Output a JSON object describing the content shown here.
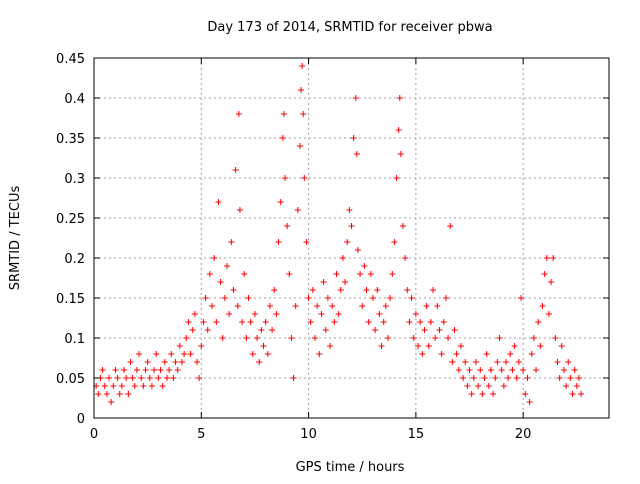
{
  "chart_data": {
    "type": "scatter",
    "title": "Day 173 of 2014, SRMTID for receiver pbwa",
    "xlabel": "GPS time / hours",
    "ylabel": "SRMTID / TECUs",
    "xlim": [
      0,
      24
    ],
    "ylim": [
      0,
      0.45
    ],
    "xticks": [
      0,
      5,
      10,
      15,
      20
    ],
    "xtick_labels": [
      "0",
      "5",
      "10",
      "15",
      "20"
    ],
    "yticks": [
      0,
      0.05,
      0.1,
      0.15,
      0.2,
      0.25,
      0.3,
      0.35,
      0.4,
      0.45
    ],
    "ytick_labels": [
      "0",
      "0.05",
      "0.1",
      "0.15",
      "0.2",
      "0.25",
      "0.3",
      "0.35",
      "0.4",
      "0.45"
    ],
    "grid": true,
    "marker": "plus",
    "color": "#ff0000",
    "series": [
      {
        "name": "SRMTID",
        "points": [
          [
            0.1,
            0.04
          ],
          [
            0.2,
            0.03
          ],
          [
            0.3,
            0.05
          ],
          [
            0.4,
            0.06
          ],
          [
            0.5,
            0.04
          ],
          [
            0.6,
            0.03
          ],
          [
            0.7,
            0.05
          ],
          [
            0.8,
            0.02
          ],
          [
            0.9,
            0.04
          ],
          [
            1.0,
            0.06
          ],
          [
            1.1,
            0.05
          ],
          [
            1.2,
            0.03
          ],
          [
            1.3,
            0.04
          ],
          [
            1.4,
            0.06
          ],
          [
            1.5,
            0.05
          ],
          [
            1.6,
            0.03
          ],
          [
            1.7,
            0.07
          ],
          [
            1.8,
            0.05
          ],
          [
            1.9,
            0.04
          ],
          [
            2.0,
            0.06
          ],
          [
            2.1,
            0.08
          ],
          [
            2.2,
            0.05
          ],
          [
            2.3,
            0.04
          ],
          [
            2.4,
            0.06
          ],
          [
            2.5,
            0.07
          ],
          [
            2.6,
            0.05
          ],
          [
            2.7,
            0.04
          ],
          [
            2.8,
            0.06
          ],
          [
            2.9,
            0.08
          ],
          [
            3.0,
            0.05
          ],
          [
            3.1,
            0.06
          ],
          [
            3.2,
            0.04
          ],
          [
            3.3,
            0.07
          ],
          [
            3.4,
            0.05
          ],
          [
            3.5,
            0.06
          ],
          [
            3.6,
            0.08
          ],
          [
            3.7,
            0.05
          ],
          [
            3.8,
            0.07
          ],
          [
            3.9,
            0.06
          ],
          [
            4.0,
            0.09
          ],
          [
            4.1,
            0.07
          ],
          [
            4.2,
            0.08
          ],
          [
            4.3,
            0.1
          ],
          [
            4.4,
            0.12
          ],
          [
            4.5,
            0.08
          ],
          [
            4.6,
            0.11
          ],
          [
            4.7,
            0.13
          ],
          [
            4.8,
            0.07
          ],
          [
            4.9,
            0.05
          ],
          [
            5.0,
            0.09
          ],
          [
            5.1,
            0.12
          ],
          [
            5.2,
            0.15
          ],
          [
            5.3,
            0.11
          ],
          [
            5.4,
            0.18
          ],
          [
            5.5,
            0.14
          ],
          [
            5.6,
            0.2
          ],
          [
            5.7,
            0.12
          ],
          [
            5.8,
            0.27
          ],
          [
            5.9,
            0.17
          ],
          [
            6.0,
            0.1
          ],
          [
            6.1,
            0.15
          ],
          [
            6.2,
            0.19
          ],
          [
            6.3,
            0.13
          ],
          [
            6.4,
            0.22
          ],
          [
            6.5,
            0.16
          ],
          [
            6.6,
            0.31
          ],
          [
            6.7,
            0.14
          ],
          [
            6.75,
            0.38
          ],
          [
            6.8,
            0.26
          ],
          [
            6.9,
            0.12
          ],
          [
            7.0,
            0.18
          ],
          [
            7.1,
            0.1
          ],
          [
            7.2,
            0.15
          ],
          [
            7.3,
            0.12
          ],
          [
            7.4,
            0.08
          ],
          [
            7.5,
            0.13
          ],
          [
            7.6,
            0.1
          ],
          [
            7.7,
            0.07
          ],
          [
            7.8,
            0.11
          ],
          [
            7.9,
            0.09
          ],
          [
            8.0,
            0.12
          ],
          [
            8.1,
            0.08
          ],
          [
            8.2,
            0.14
          ],
          [
            8.3,
            0.11
          ],
          [
            8.4,
            0.16
          ],
          [
            8.5,
            0.13
          ],
          [
            8.6,
            0.22
          ],
          [
            8.7,
            0.27
          ],
          [
            8.8,
            0.35
          ],
          [
            8.85,
            0.38
          ],
          [
            8.9,
            0.3
          ],
          [
            9.0,
            0.24
          ],
          [
            9.1,
            0.18
          ],
          [
            9.2,
            0.1
          ],
          [
            9.3,
            0.05
          ],
          [
            9.4,
            0.14
          ],
          [
            9.5,
            0.26
          ],
          [
            9.6,
            0.34
          ],
          [
            9.65,
            0.41
          ],
          [
            9.7,
            0.44
          ],
          [
            9.75,
            0.38
          ],
          [
            9.8,
            0.3
          ],
          [
            9.9,
            0.22
          ],
          [
            10.0,
            0.15
          ],
          [
            10.1,
            0.12
          ],
          [
            10.2,
            0.16
          ],
          [
            10.3,
            0.1
          ],
          [
            10.4,
            0.14
          ],
          [
            10.5,
            0.08
          ],
          [
            10.6,
            0.13
          ],
          [
            10.7,
            0.17
          ],
          [
            10.8,
            0.11
          ],
          [
            10.9,
            0.15
          ],
          [
            11.0,
            0.09
          ],
          [
            11.1,
            0.14
          ],
          [
            11.2,
            0.12
          ],
          [
            11.3,
            0.18
          ],
          [
            11.4,
            0.13
          ],
          [
            11.5,
            0.16
          ],
          [
            11.6,
            0.2
          ],
          [
            11.7,
            0.17
          ],
          [
            11.8,
            0.22
          ],
          [
            11.9,
            0.26
          ],
          [
            12.0,
            0.24
          ],
          [
            12.1,
            0.35
          ],
          [
            12.2,
            0.4
          ],
          [
            12.25,
            0.33
          ],
          [
            12.3,
            0.21
          ],
          [
            12.4,
            0.18
          ],
          [
            12.5,
            0.14
          ],
          [
            12.6,
            0.19
          ],
          [
            12.7,
            0.16
          ],
          [
            12.8,
            0.12
          ],
          [
            12.9,
            0.18
          ],
          [
            13.0,
            0.15
          ],
          [
            13.1,
            0.11
          ],
          [
            13.2,
            0.16
          ],
          [
            13.3,
            0.13
          ],
          [
            13.4,
            0.09
          ],
          [
            13.5,
            0.12
          ],
          [
            13.6,
            0.14
          ],
          [
            13.7,
            0.1
          ],
          [
            13.8,
            0.15
          ],
          [
            13.9,
            0.18
          ],
          [
            14.0,
            0.22
          ],
          [
            14.1,
            0.3
          ],
          [
            14.2,
            0.36
          ],
          [
            14.25,
            0.4
          ],
          [
            14.3,
            0.33
          ],
          [
            14.4,
            0.24
          ],
          [
            14.5,
            0.2
          ],
          [
            14.6,
            0.16
          ],
          [
            14.7,
            0.12
          ],
          [
            14.8,
            0.15
          ],
          [
            14.9,
            0.1
          ],
          [
            15.0,
            0.13
          ],
          [
            15.1,
            0.09
          ],
          [
            15.2,
            0.12
          ],
          [
            15.3,
            0.08
          ],
          [
            15.4,
            0.11
          ],
          [
            15.5,
            0.14
          ],
          [
            15.6,
            0.09
          ],
          [
            15.7,
            0.12
          ],
          [
            15.8,
            0.16
          ],
          [
            15.9,
            0.1
          ],
          [
            16.0,
            0.14
          ],
          [
            16.1,
            0.11
          ],
          [
            16.2,
            0.08
          ],
          [
            16.3,
            0.12
          ],
          [
            16.4,
            0.15
          ],
          [
            16.5,
            0.1
          ],
          [
            16.6,
            0.24
          ],
          [
            16.7,
            0.07
          ],
          [
            16.8,
            0.11
          ],
          [
            16.9,
            0.08
          ],
          [
            17.0,
            0.06
          ],
          [
            17.1,
            0.09
          ],
          [
            17.2,
            0.05
          ],
          [
            17.3,
            0.07
          ],
          [
            17.4,
            0.04
          ],
          [
            17.5,
            0.06
          ],
          [
            17.6,
            0.03
          ],
          [
            17.7,
            0.05
          ],
          [
            17.8,
            0.07
          ],
          [
            17.9,
            0.04
          ],
          [
            18.0,
            0.06
          ],
          [
            18.1,
            0.03
          ],
          [
            18.2,
            0.05
          ],
          [
            18.3,
            0.08
          ],
          [
            18.4,
            0.04
          ],
          [
            18.5,
            0.06
          ],
          [
            18.6,
            0.03
          ],
          [
            18.7,
            0.05
          ],
          [
            18.8,
            0.07
          ],
          [
            18.9,
            0.1
          ],
          [
            19.0,
            0.06
          ],
          [
            19.1,
            0.04
          ],
          [
            19.2,
            0.07
          ],
          [
            19.3,
            0.05
          ],
          [
            19.4,
            0.08
          ],
          [
            19.5,
            0.06
          ],
          [
            19.6,
            0.09
          ],
          [
            19.7,
            0.05
          ],
          [
            19.8,
            0.07
          ],
          [
            19.9,
            0.15
          ],
          [
            20.0,
            0.06
          ],
          [
            20.1,
            0.03
          ],
          [
            20.2,
            0.05
          ],
          [
            20.3,
            0.02
          ],
          [
            20.4,
            0.08
          ],
          [
            20.5,
            0.1
          ],
          [
            20.6,
            0.06
          ],
          [
            20.7,
            0.12
          ],
          [
            20.8,
            0.09
          ],
          [
            20.9,
            0.14
          ],
          [
            21.0,
            0.18
          ],
          [
            21.1,
            0.2
          ],
          [
            21.2,
            0.13
          ],
          [
            21.3,
            0.17
          ],
          [
            21.4,
            0.2
          ],
          [
            21.5,
            0.1
          ],
          [
            21.6,
            0.07
          ],
          [
            21.7,
            0.05
          ],
          [
            21.8,
            0.09
          ],
          [
            21.9,
            0.06
          ],
          [
            22.0,
            0.04
          ],
          [
            22.1,
            0.07
          ],
          [
            22.2,
            0.05
          ],
          [
            22.3,
            0.03
          ],
          [
            22.4,
            0.06
          ],
          [
            22.5,
            0.04
          ],
          [
            22.6,
            0.05
          ],
          [
            22.7,
            0.03
          ]
        ]
      }
    ]
  }
}
